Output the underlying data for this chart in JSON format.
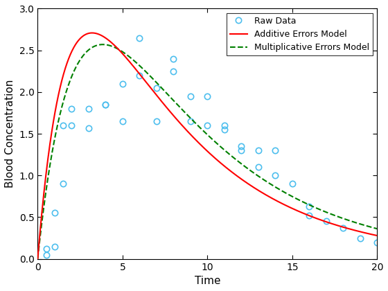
{
  "title": "",
  "xlabel": "Time",
  "ylabel": "Blood Concentration",
  "xlim": [
    0,
    20
  ],
  "ylim": [
    0,
    3
  ],
  "xticks": [
    0,
    5,
    10,
    15,
    20
  ],
  "yticks": [
    0,
    0.5,
    1.0,
    1.5,
    2.0,
    2.5,
    3.0
  ],
  "raw_x": [
    0.5,
    0.5,
    1.0,
    1.0,
    1.5,
    1.5,
    2.0,
    2.0,
    3.0,
    3.0,
    4.0,
    4.0,
    5.0,
    5.0,
    6.0,
    6.0,
    7.0,
    7.0,
    8.0,
    8.0,
    9.0,
    9.0,
    10.0,
    10.0,
    11.0,
    11.0,
    12.0,
    12.0,
    13.0,
    13.0,
    14.0,
    14.0,
    15.0,
    16.0,
    16.0,
    17.0,
    18.0,
    19.0,
    20.0
  ],
  "raw_y": [
    0.05,
    0.12,
    0.15,
    0.55,
    0.9,
    1.6,
    1.6,
    1.8,
    1.57,
    1.8,
    1.85,
    1.85,
    1.65,
    2.1,
    2.2,
    2.65,
    1.65,
    2.05,
    2.25,
    2.4,
    1.65,
    1.95,
    1.6,
    1.95,
    1.55,
    1.6,
    1.3,
    1.35,
    1.1,
    1.3,
    1.0,
    1.3,
    0.9,
    0.52,
    0.63,
    0.45,
    0.37,
    0.25,
    0.2
  ],
  "raw_color": "#4DBEEE",
  "raw_marker": "o",
  "raw_markersize": 6,
  "additive_color": "#FF0000",
  "additive_linewidth": 1.5,
  "multiplicative_color": "#008000",
  "multiplicative_linewidth": 1.5,
  "multiplicative_linestyle": "--",
  "ka_add": 0.55,
  "ke_add": 0.155,
  "D_add": 6.2,
  "ka_mult": 0.42,
  "ke_mult": 0.148,
  "D_mult": 7.0,
  "legend_loc": "upper right",
  "figsize": [
    5.6,
    4.2
  ],
  "dpi": 100,
  "bg_color": "#FFFFFF",
  "axes_bg": "#FFFFFF"
}
